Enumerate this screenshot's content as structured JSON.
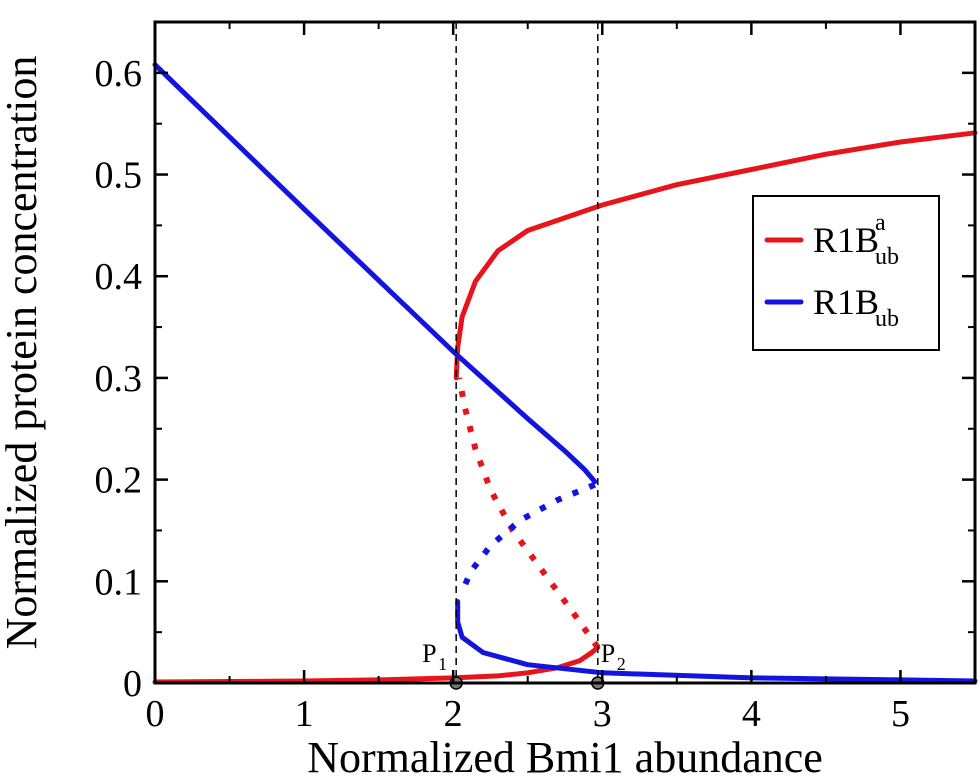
{
  "chart_data": {
    "type": "line",
    "xlabel": "Normalized Bmi1 abundance",
    "ylabel": "Normalized protein concentration",
    "xlim": [
      0,
      5.5
    ],
    "ylim": [
      0,
      0.65
    ],
    "x_ticks": [
      "0",
      "1",
      "2",
      "3",
      "4",
      "5"
    ],
    "x_tick_values": [
      0,
      1,
      2,
      3,
      4,
      5
    ],
    "y_ticks": [
      "0",
      "0.1",
      "0.2",
      "0.3",
      "0.4",
      "0.5",
      "0.6"
    ],
    "y_tick_values": [
      0,
      0.1,
      0.2,
      0.3,
      0.4,
      0.5,
      0.6
    ],
    "grid": false,
    "legend_position": "right",
    "colors": {
      "red": "#e8141c",
      "blue": "#1414e0"
    },
    "legend": [
      {
        "base": "R1B",
        "sup": "a",
        "sub": "ub",
        "color": "#e8141c"
      },
      {
        "base": "R1B",
        "sup": "",
        "sub": "ub",
        "color": "#1414e0"
      }
    ],
    "annotations": [
      {
        "base": "P",
        "sub": "1",
        "x": 2.02
      },
      {
        "base": "P",
        "sub": "2",
        "x": 2.97
      }
    ],
    "series": [
      {
        "name": "R1Bᵃub",
        "color": "#e8141c",
        "segments": [
          {
            "style": "solid",
            "points": [
              [
                0,
                0.001
              ],
              [
                0.5,
                0.0015
              ],
              [
                1.0,
                0.002
              ],
              [
                1.5,
                0.003
              ],
              [
                2.0,
                0.005
              ],
              [
                2.3,
                0.007
              ],
              [
                2.5,
                0.01
              ],
              [
                2.7,
                0.015
              ],
              [
                2.85,
                0.022
              ],
              [
                2.93,
                0.03
              ],
              [
                2.97,
                0.035
              ]
            ]
          },
          {
            "style": "dotted",
            "points": [
              [
                2.97,
                0.035
              ],
              [
                2.8,
                0.07
              ],
              [
                2.6,
                0.11
              ],
              [
                2.4,
                0.15
              ],
              [
                2.25,
                0.19
              ],
              [
                2.15,
                0.23
              ],
              [
                2.08,
                0.27
              ],
              [
                2.04,
                0.3
              ]
            ]
          },
          {
            "style": "solid",
            "points": [
              [
                2.02,
                0.3
              ],
              [
                2.03,
                0.33
              ],
              [
                2.06,
                0.36
              ],
              [
                2.15,
                0.395
              ],
              [
                2.3,
                0.425
              ],
              [
                2.5,
                0.445
              ],
              [
                3.0,
                0.47
              ],
              [
                3.5,
                0.49
              ],
              [
                4.0,
                0.505
              ],
              [
                4.5,
                0.52
              ],
              [
                5.0,
                0.532
              ],
              [
                5.5,
                0.541
              ]
            ]
          }
        ]
      },
      {
        "name": "R1Bub",
        "color": "#1414e0",
        "segments": [
          {
            "style": "solid",
            "points": [
              [
                0,
                0.608
              ],
              [
                1.0,
                0.466
              ],
              [
                2.0,
                0.326
              ],
              [
                2.5,
                0.26
              ],
              [
                2.75,
                0.228
              ],
              [
                2.88,
                0.21
              ],
              [
                2.95,
                0.198
              ]
            ]
          },
          {
            "style": "dotted",
            "points": [
              [
                2.95,
                0.195
              ],
              [
                2.7,
                0.18
              ],
              [
                2.45,
                0.16
              ],
              [
                2.25,
                0.135
              ],
              [
                2.12,
                0.11
              ],
              [
                2.06,
                0.09
              ]
            ]
          },
          {
            "style": "solid",
            "points": [
              [
                2.03,
                0.08
              ],
              [
                2.03,
                0.06
              ],
              [
                2.06,
                0.045
              ],
              [
                2.2,
                0.03
              ],
              [
                2.5,
                0.018
              ],
              [
                3.0,
                0.01
              ],
              [
                4.0,
                0.005
              ],
              [
                5.0,
                0.003
              ],
              [
                5.5,
                0.002
              ]
            ]
          }
        ]
      }
    ]
  }
}
